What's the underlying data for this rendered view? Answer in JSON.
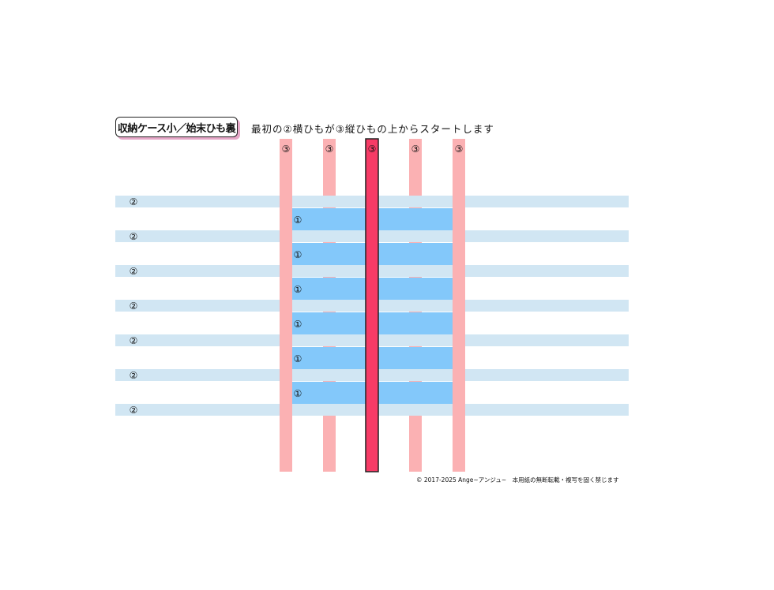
{
  "title": "収納ケース小／始末ひも裏",
  "instruction": "最初の②横ひもが③縦ひもの上からスタートします",
  "copyright": "© 2017-2025 Ange~アンジュ~　本用紙の無断転載・複写を固く禁じます",
  "strip_labels": {
    "vertical": "③",
    "horizontal": "②",
    "inner": "①"
  },
  "colors": {
    "vertical_strip": "#fbb1b3",
    "vertical_center": "#f73b66",
    "horizontal_strip": "#d1e6f3",
    "inner_strip": "#83c8fa"
  },
  "counts": {
    "vertical_strips": 5,
    "horizontal_strips": 7,
    "inner_strips": 6
  }
}
